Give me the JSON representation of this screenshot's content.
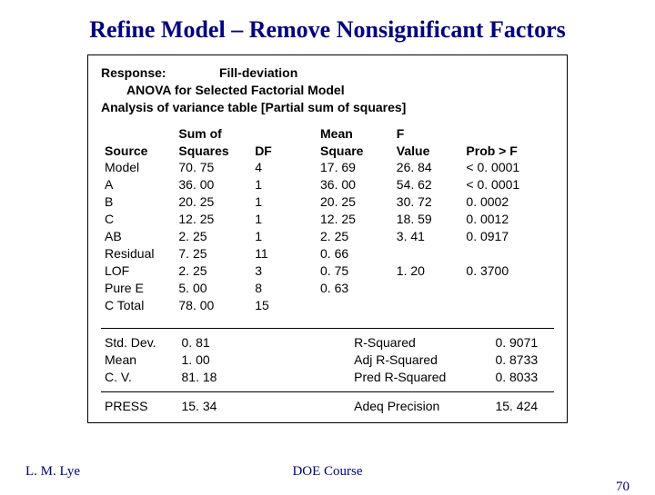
{
  "title": "Refine Model – Remove Nonsignificant Factors",
  "header": {
    "response_label": "Response:",
    "response_value": "Fill-deviation",
    "line2": "ANOVA for Selected Factorial Model",
    "line3": "Analysis of variance table [Partial sum of squares]"
  },
  "anova": {
    "columns": {
      "source": "Source",
      "ss1": "Sum of",
      "ss2": "Squares",
      "df": "DF",
      "ms1": "Mean",
      "ms2": "Square",
      "f1": "F",
      "f2": "Value",
      "p": "Prob > F"
    },
    "rows": [
      {
        "source": "Model",
        "ss": "70. 75",
        "df": "4",
        "ms": "17. 69",
        "f": "26. 84",
        "p": "< 0. 0001"
      },
      {
        "source": "A",
        "ss": "36. 00",
        "df": "1",
        "ms": "36. 00",
        "f": "54. 62",
        "p": "< 0. 0001"
      },
      {
        "source": "B",
        "ss": "20. 25",
        "df": "1",
        "ms": "20. 25",
        "f": "30. 72",
        "p": "0. 0002"
      },
      {
        "source": "C",
        "ss": "12. 25",
        "df": "1",
        "ms": "12. 25",
        "f": "18. 59",
        "p": "0. 0012"
      },
      {
        "source": "AB",
        "ss": "2. 25",
        "df": "1",
        "ms": "2. 25",
        "f": "3. 41",
        "p": "0. 0917"
      },
      {
        "source": "Residual",
        "ss": "7. 25",
        "df": "11",
        "ms": "0. 66",
        "f": "",
        "p": ""
      },
      {
        "source": "LOF",
        "ss": "2. 25",
        "df": "3",
        "ms": "0. 75",
        "f": "1. 20",
        "p": "0. 3700"
      },
      {
        "source": "Pure E",
        "ss": "5. 00",
        "df": "8",
        "ms": "0. 63",
        "f": "",
        "p": ""
      },
      {
        "source": "C Total",
        "ss": "78. 00",
        "df": "15",
        "ms": "",
        "f": "",
        "p": ""
      }
    ]
  },
  "stats1": [
    {
      "l1": "Std. Dev.",
      "l2": "0. 81",
      "r1": "R-Squared",
      "r2": "0. 9071"
    },
    {
      "l1": "Mean",
      "l2": "1. 00",
      "r1": "Adj R-Squared",
      "r2": "0. 8733"
    },
    {
      "l1": "C. V.",
      "l2": "81. 18",
      "r1": "Pred R-Squared",
      "r2": "0. 8033"
    }
  ],
  "stats2": [
    {
      "l1": "PRESS",
      "l2": "15. 34",
      "r1": "Adeq Precision",
      "r2": "15. 424"
    }
  ],
  "footer": {
    "author": "L. M. Lye",
    "course": "DOE Course",
    "page": "70"
  }
}
